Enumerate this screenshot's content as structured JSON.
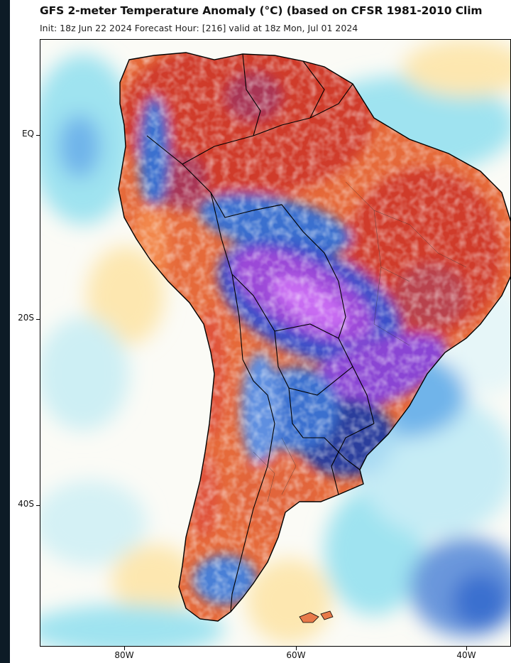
{
  "figure": {
    "title": "GFS 2-meter Temperature Anomaly (°C) (based on CFSR 1981-2010 Clim",
    "subtitle": "Init: 18z Jun 22 2024   Forecast Hour: [216]   valid at 18z Mon, Jul 01 2024"
  },
  "axes": {
    "lat_labels": [
      {
        "label": "EQ",
        "lat": 0
      },
      {
        "label": "20S",
        "lat": -20
      },
      {
        "label": "40S",
        "lat": -40
      }
    ],
    "lon_labels": [
      {
        "label": "80W",
        "lon": -80
      },
      {
        "label": "60W",
        "lon": -60
      },
      {
        "label": "40W",
        "lon": -40
      }
    ],
    "lon_range": [
      -90,
      -35
    ],
    "lat_range": [
      -56,
      11
    ]
  },
  "colors": {
    "ocean_neutral": "#fbfbf6",
    "warm_light": "#fde7b0",
    "warm_orange": "#f2874c",
    "warm_red": "#d9452c",
    "warm_deep": "#a83455",
    "cool_light": "#9fe3f0",
    "cool_blue": "#3b6fcf",
    "cool_purple": "#9b48d8",
    "cool_violet": "#c86cf2",
    "borders": "#000000"
  }
}
